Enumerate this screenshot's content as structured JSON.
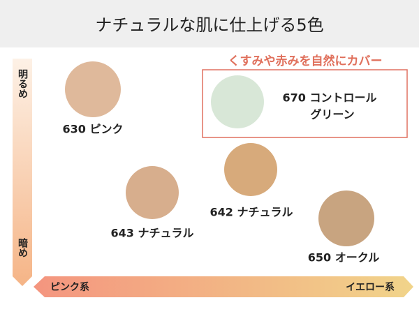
{
  "header": {
    "title": "ナチュラルな肌に仕上げる5色"
  },
  "axes": {
    "vertical": {
      "top": "明るめ",
      "bottom": "暗め"
    },
    "horizontal": {
      "left": "ピンク系",
      "right": "イエロー系"
    }
  },
  "highlight": {
    "caption": "くすみや赤みを自然にカバー"
  },
  "shades": [
    {
      "label": "630 ピンク"
    },
    {
      "label_lines": [
        "670 コントロール",
        "グリーン"
      ]
    },
    {
      "label": "642 ナチュラル"
    },
    {
      "label": "643 ナチュラル"
    },
    {
      "label": "650 オークル"
    }
  ]
}
